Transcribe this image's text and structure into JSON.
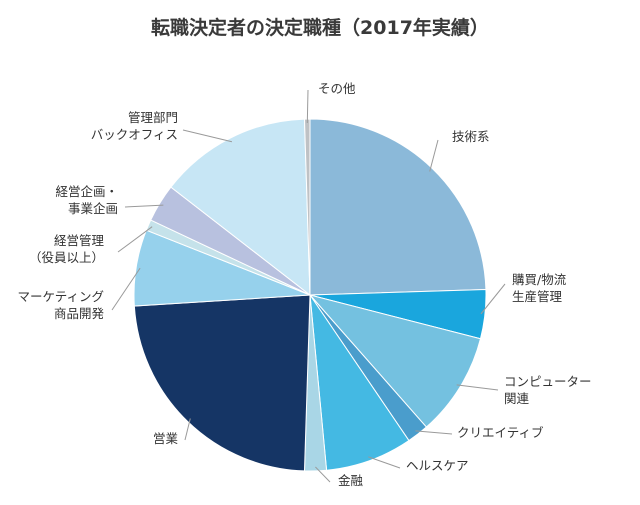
{
  "chart_data": {
    "type": "pie",
    "title": "転職決定者の決定職種（2017年実績）",
    "start_angle_deg": 0,
    "direction": "clockwise",
    "slices": [
      {
        "lines": [
          "技術系"
        ],
        "value": 24.5,
        "color": "#8bb9d9"
      },
      {
        "lines": [
          "購買/物流",
          "生産管理"
        ],
        "value": 4.5,
        "color": "#1aa6dd"
      },
      {
        "lines": [
          "コンピューター",
          "関連"
        ],
        "value": 9.5,
        "color": "#74c1e0"
      },
      {
        "lines": [
          "クリエイティブ"
        ],
        "value": 2.0,
        "color": "#4a9dcc"
      },
      {
        "lines": [
          "ヘルスケア"
        ],
        "value": 8.0,
        "color": "#44b9e3"
      },
      {
        "lines": [
          "金融"
        ],
        "value": 2.0,
        "color": "#a9d6e6"
      },
      {
        "lines": [
          "営業"
        ],
        "value": 23.5,
        "color": "#153565"
      },
      {
        "lines": [
          "マーケティング",
          "商品開発"
        ],
        "value": 7.0,
        "color": "#96d1ec"
      },
      {
        "lines": [
          "経営管理",
          "（役員以上）"
        ],
        "value": 1.0,
        "color": "#c5e2ea"
      },
      {
        "lines": [
          "経営企画・",
          "事業企画"
        ],
        "value": 3.5,
        "color": "#b8c1df"
      },
      {
        "lines": [
          "管理部門",
          "バックオフィス"
        ],
        "value": 14.0,
        "color": "#c7e6f5"
      },
      {
        "lines": [
          "その他"
        ],
        "value": 0.5,
        "color": "#bfc2c5"
      }
    ]
  }
}
